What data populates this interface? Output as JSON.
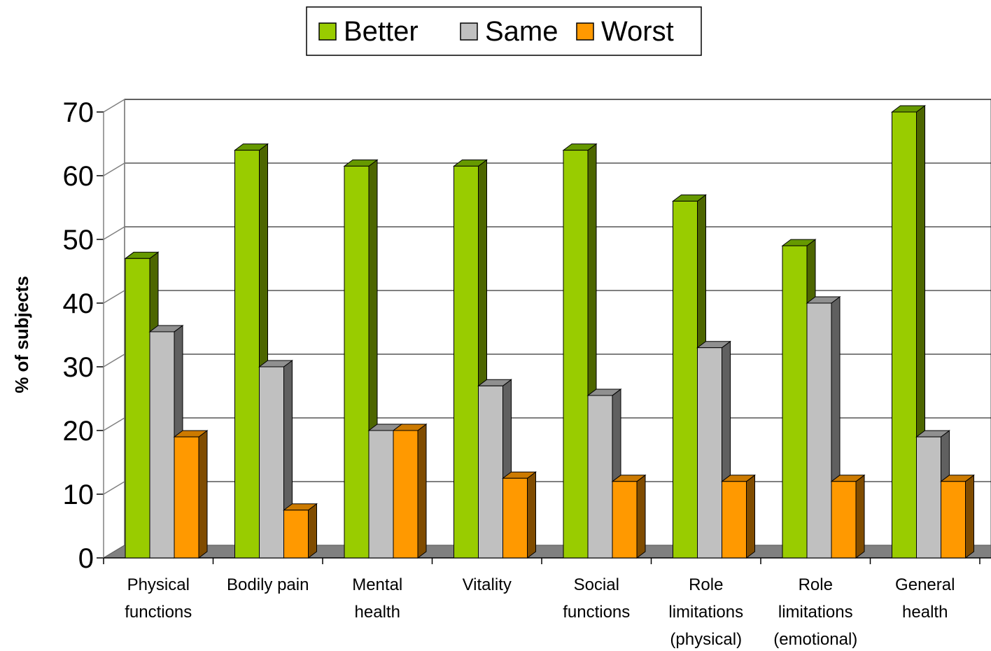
{
  "chart_data": {
    "type": "bar",
    "categories": [
      [
        "Physical",
        "functions"
      ],
      [
        "Bodily pain"
      ],
      [
        "Mental",
        "health"
      ],
      [
        "Vitality"
      ],
      [
        "Social",
        "functions"
      ],
      [
        "Role",
        "limitations",
        "(physical)"
      ],
      [
        "Role",
        "limitations",
        "(emotional)"
      ],
      [
        "General",
        "health"
      ]
    ],
    "series": [
      {
        "name": "Better",
        "color": "#99cc00",
        "side": "#4d6600",
        "top": "#669900",
        "values": [
          47,
          64,
          61.5,
          61.5,
          64,
          56,
          49,
          70
        ]
      },
      {
        "name": "Same",
        "color": "#c0c0c0",
        "side": "#606060",
        "top": "#909090",
        "values": [
          35.5,
          30,
          20,
          27,
          25.5,
          33,
          40,
          19
        ]
      },
      {
        "name": "Worst",
        "color": "#ff9900",
        "side": "#804c00",
        "top": "#cc7a00",
        "values": [
          19,
          7.5,
          20,
          12.5,
          12,
          12,
          12,
          12
        ]
      }
    ],
    "xlabel": "",
    "ylabel": "% of subjects",
    "yticks": [
      "0",
      "10",
      "20",
      "30",
      "40",
      "50",
      "60",
      "70"
    ],
    "ylim": [
      0,
      70
    ],
    "grid": true,
    "legend_position": "top-center",
    "floor_color": "#808080"
  }
}
